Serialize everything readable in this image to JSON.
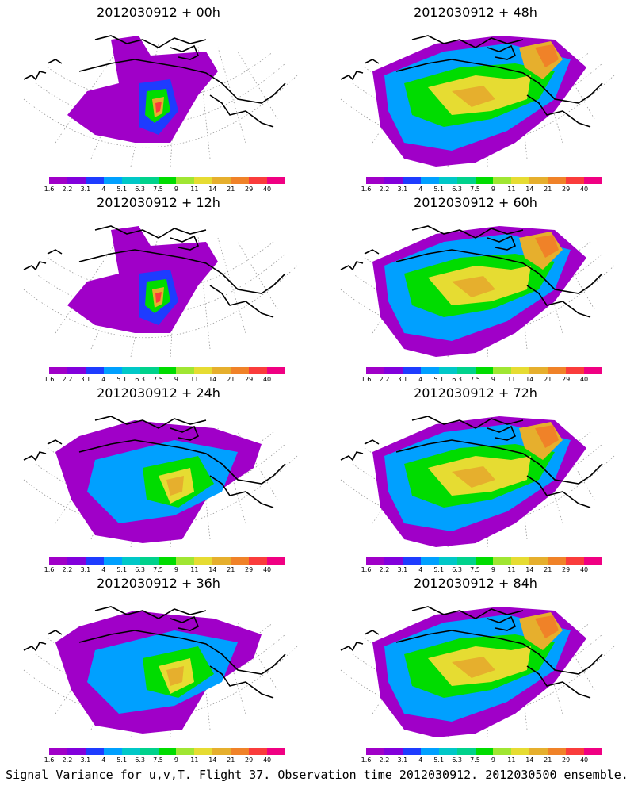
{
  "panels": [
    {
      "title": "2012030912 + 00h",
      "lead": "00h",
      "intensity": "low",
      "hotspot": "core"
    },
    {
      "title": "2012030912 + 48h",
      "lead": "48h",
      "intensity": "high"
    },
    {
      "title": "2012030912 + 12h",
      "lead": "12h",
      "intensity": "low",
      "hotspot": "core"
    },
    {
      "title": "2012030912 + 60h",
      "lead": "60h",
      "intensity": "high"
    },
    {
      "title": "2012030912 + 24h",
      "lead": "24h",
      "intensity": "medium"
    },
    {
      "title": "2012030912 + 72h",
      "lead": "72h",
      "intensity": "high"
    },
    {
      "title": "2012030912 + 36h",
      "lead": "36h",
      "intensity": "medium"
    },
    {
      "title": "2012030912 + 84h",
      "lead": "84h",
      "intensity": "high"
    }
  ],
  "colorbar": {
    "levels": [
      "1.6",
      "2.2",
      "3.1",
      "4",
      "5.1",
      "6.3",
      "7.5",
      "9",
      "11",
      "14",
      "21",
      "29",
      "40"
    ],
    "colors": [
      "#a000c8",
      "#8200dc",
      "#1e3cff",
      "#00a0ff",
      "#00c8c8",
      "#00d28c",
      "#00dc00",
      "#a0e632",
      "#e6dc32",
      "#e6af2d",
      "#f08228",
      "#fa3c3c",
      "#f00082"
    ]
  },
  "footer": "Signal Variance for u,v,T. Flight 37. Observation time 2012030912. 2012030500 ensemble."
}
